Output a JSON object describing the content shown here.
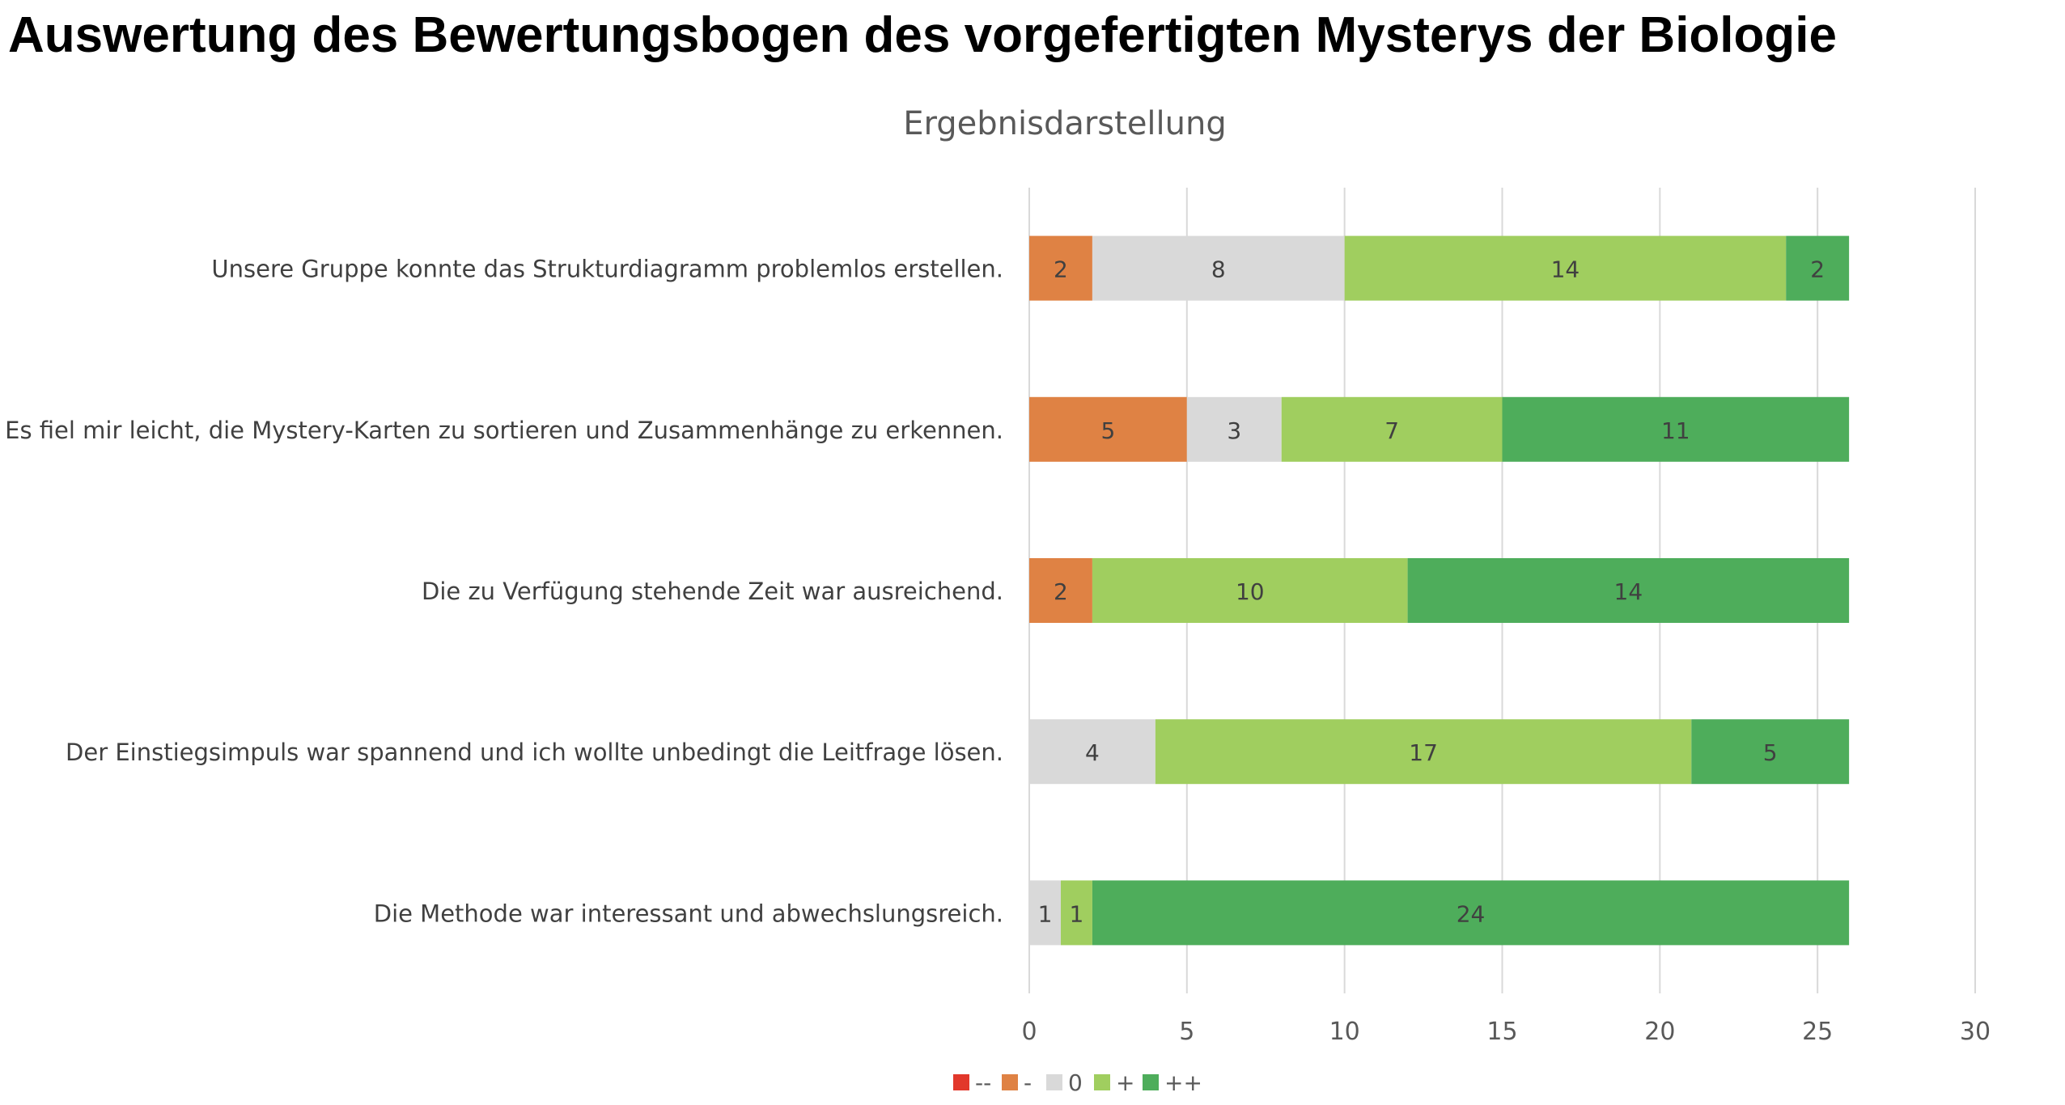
{
  "page_title": "Auswertung des Bewertungsbogen des vorgefertigten Mysterys der Biologie",
  "chart_data": {
    "type": "bar",
    "orientation": "horizontal",
    "stacked": true,
    "title": "Ergebnisdarstellung",
    "xlabel": "",
    "ylabel": "",
    "categories": [
      "Unsere Gruppe konnte das Strukturdiagramm problemlos erstellen.",
      "Es fiel mir leicht, die Mystery-Karten zu sortieren und Zusammenhänge zu erkennen.",
      "Die zu Verfügung stehende Zeit war ausreichend.",
      "Der Einstiegsimpuls war spannend und ich wollte unbedingt die Leitfrage lösen.",
      "Die Methode war interessant und abwechslungsreich."
    ],
    "series": [
      {
        "name": "--",
        "color": "#E2382B",
        "values": [
          0,
          0,
          0,
          0,
          0
        ]
      },
      {
        "name": "-",
        "color": "#DF8244",
        "values": [
          2,
          5,
          2,
          0,
          0
        ]
      },
      {
        "name": "0",
        "color": "#D9D9D9",
        "values": [
          8,
          3,
          0,
          4,
          1
        ]
      },
      {
        "name": "+",
        "color": "#A0CE5F",
        "values": [
          14,
          7,
          10,
          17,
          1
        ]
      },
      {
        "name": "++",
        "color": "#4EAD5B",
        "values": [
          2,
          11,
          14,
          5,
          24
        ]
      }
    ],
    "xlim": [
      0,
      30
    ],
    "xticks": [
      0,
      5,
      10,
      15,
      20,
      25,
      30
    ],
    "grid": true,
    "data_labels": true,
    "legend_position": "bottom"
  }
}
